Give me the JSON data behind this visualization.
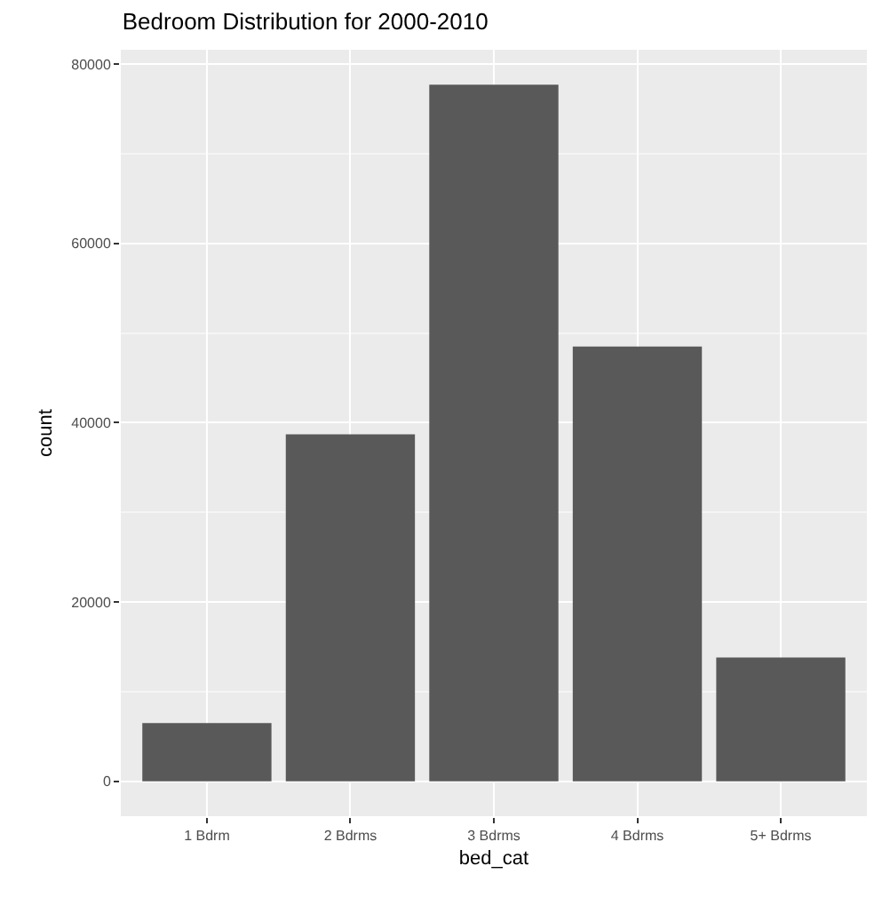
{
  "chart_data": {
    "type": "bar",
    "title": "Bedroom Distribution for 2000-2010",
    "xlabel": "bed_cat",
    "ylabel": "count",
    "categories": [
      "1 Bdrm",
      "2 Bdrms",
      "3 Bdrms",
      "4 Bdrms",
      "5+ Bdrms"
    ],
    "values": [
      6500,
      38700,
      77700,
      48500,
      13800
    ],
    "color": "#595959",
    "ylim": [
      -3900,
      81600
    ],
    "yticks": [
      0,
      20000,
      40000,
      60000,
      80000
    ],
    "grid": true
  }
}
